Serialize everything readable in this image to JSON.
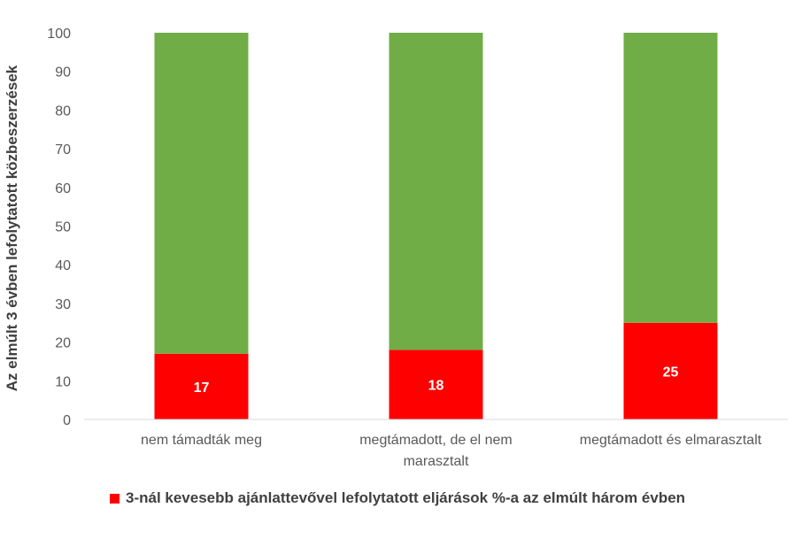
{
  "chart_data": {
    "type": "bar",
    "stacked": true,
    "percent_stacked": true,
    "categories": [
      [
        "nem támadták meg"
      ],
      [
        "megtámadott, de el nem",
        "marasztalt"
      ],
      [
        "megtámadott és elmarasztalt"
      ]
    ],
    "series": [
      {
        "name": "3-nál kevesebb ajánlattevővel lefolytatott eljárások %-a az elmúlt három évben",
        "values": [
          17,
          18,
          25
        ],
        "color": "#ff0000",
        "data_labels": [
          "17",
          "18",
          "25"
        ]
      },
      {
        "values": [
          83,
          82,
          75
        ],
        "color": "#70ad47"
      }
    ],
    "ylabel": "Az elmúlt 3 évben lefolytatott közbeszerzések",
    "ylim": [
      0,
      100
    ],
    "yticks": [
      "0",
      "10",
      "20",
      "30",
      "40",
      "50",
      "60",
      "70",
      "80",
      "90",
      "100"
    ],
    "grid": false,
    "legend_position": "bottom"
  },
  "legend": {
    "label": "3-nál kevesebb ajánlattevővel lefolytatott eljárások %-a az elmúlt három évben",
    "color": "#ff0000"
  }
}
